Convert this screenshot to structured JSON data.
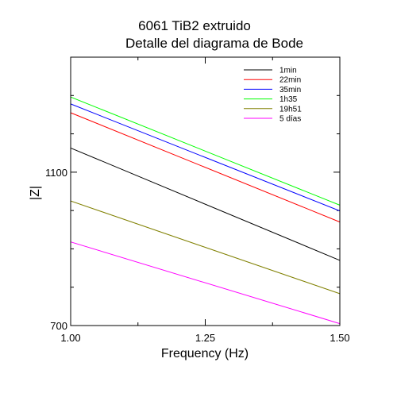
{
  "chart_data": {
    "type": "line",
    "title": "6061 TiB2 extruido",
    "subtitle": "Detalle del diagrama de Bode",
    "xlabel": "Frequency (Hz)",
    "ylabel": "|Z|",
    "xlim": [
      1.0,
      1.5
    ],
    "ylim": [
      700,
      1400
    ],
    "x_ticks": [
      1.0,
      1.25,
      1.5
    ],
    "x_tick_labels": [
      "1.00",
      "1.25",
      "1.50"
    ],
    "y_ticks": [
      700,
      1100
    ],
    "y_tick_labels": [
      "700",
      "1100"
    ],
    "grid": false,
    "legend_position": "top-right",
    "series": [
      {
        "name": "1min",
        "color": "#000000",
        "x": [
          1.0,
          1.5
        ],
        "y": [
          1163,
          870
        ]
      },
      {
        "name": "22min",
        "color": "#ff0000",
        "x": [
          1.0,
          1.5
        ],
        "y": [
          1255,
          970
        ]
      },
      {
        "name": "35min",
        "color": "#0000ff",
        "x": [
          1.0,
          1.5
        ],
        "y": [
          1278,
          999
        ]
      },
      {
        "name": "1h35",
        "color": "#00ff00",
        "x": [
          1.0,
          1.5
        ],
        "y": [
          1296,
          1014
        ]
      },
      {
        "name": "19h51",
        "color": "#808000",
        "x": [
          1.0,
          1.5
        ],
        "y": [
          1025,
          783
        ]
      },
      {
        "name": "5 días",
        "color": "#ff00ff",
        "x": [
          1.0,
          1.5
        ],
        "y": [
          918,
          705
        ]
      }
    ]
  }
}
